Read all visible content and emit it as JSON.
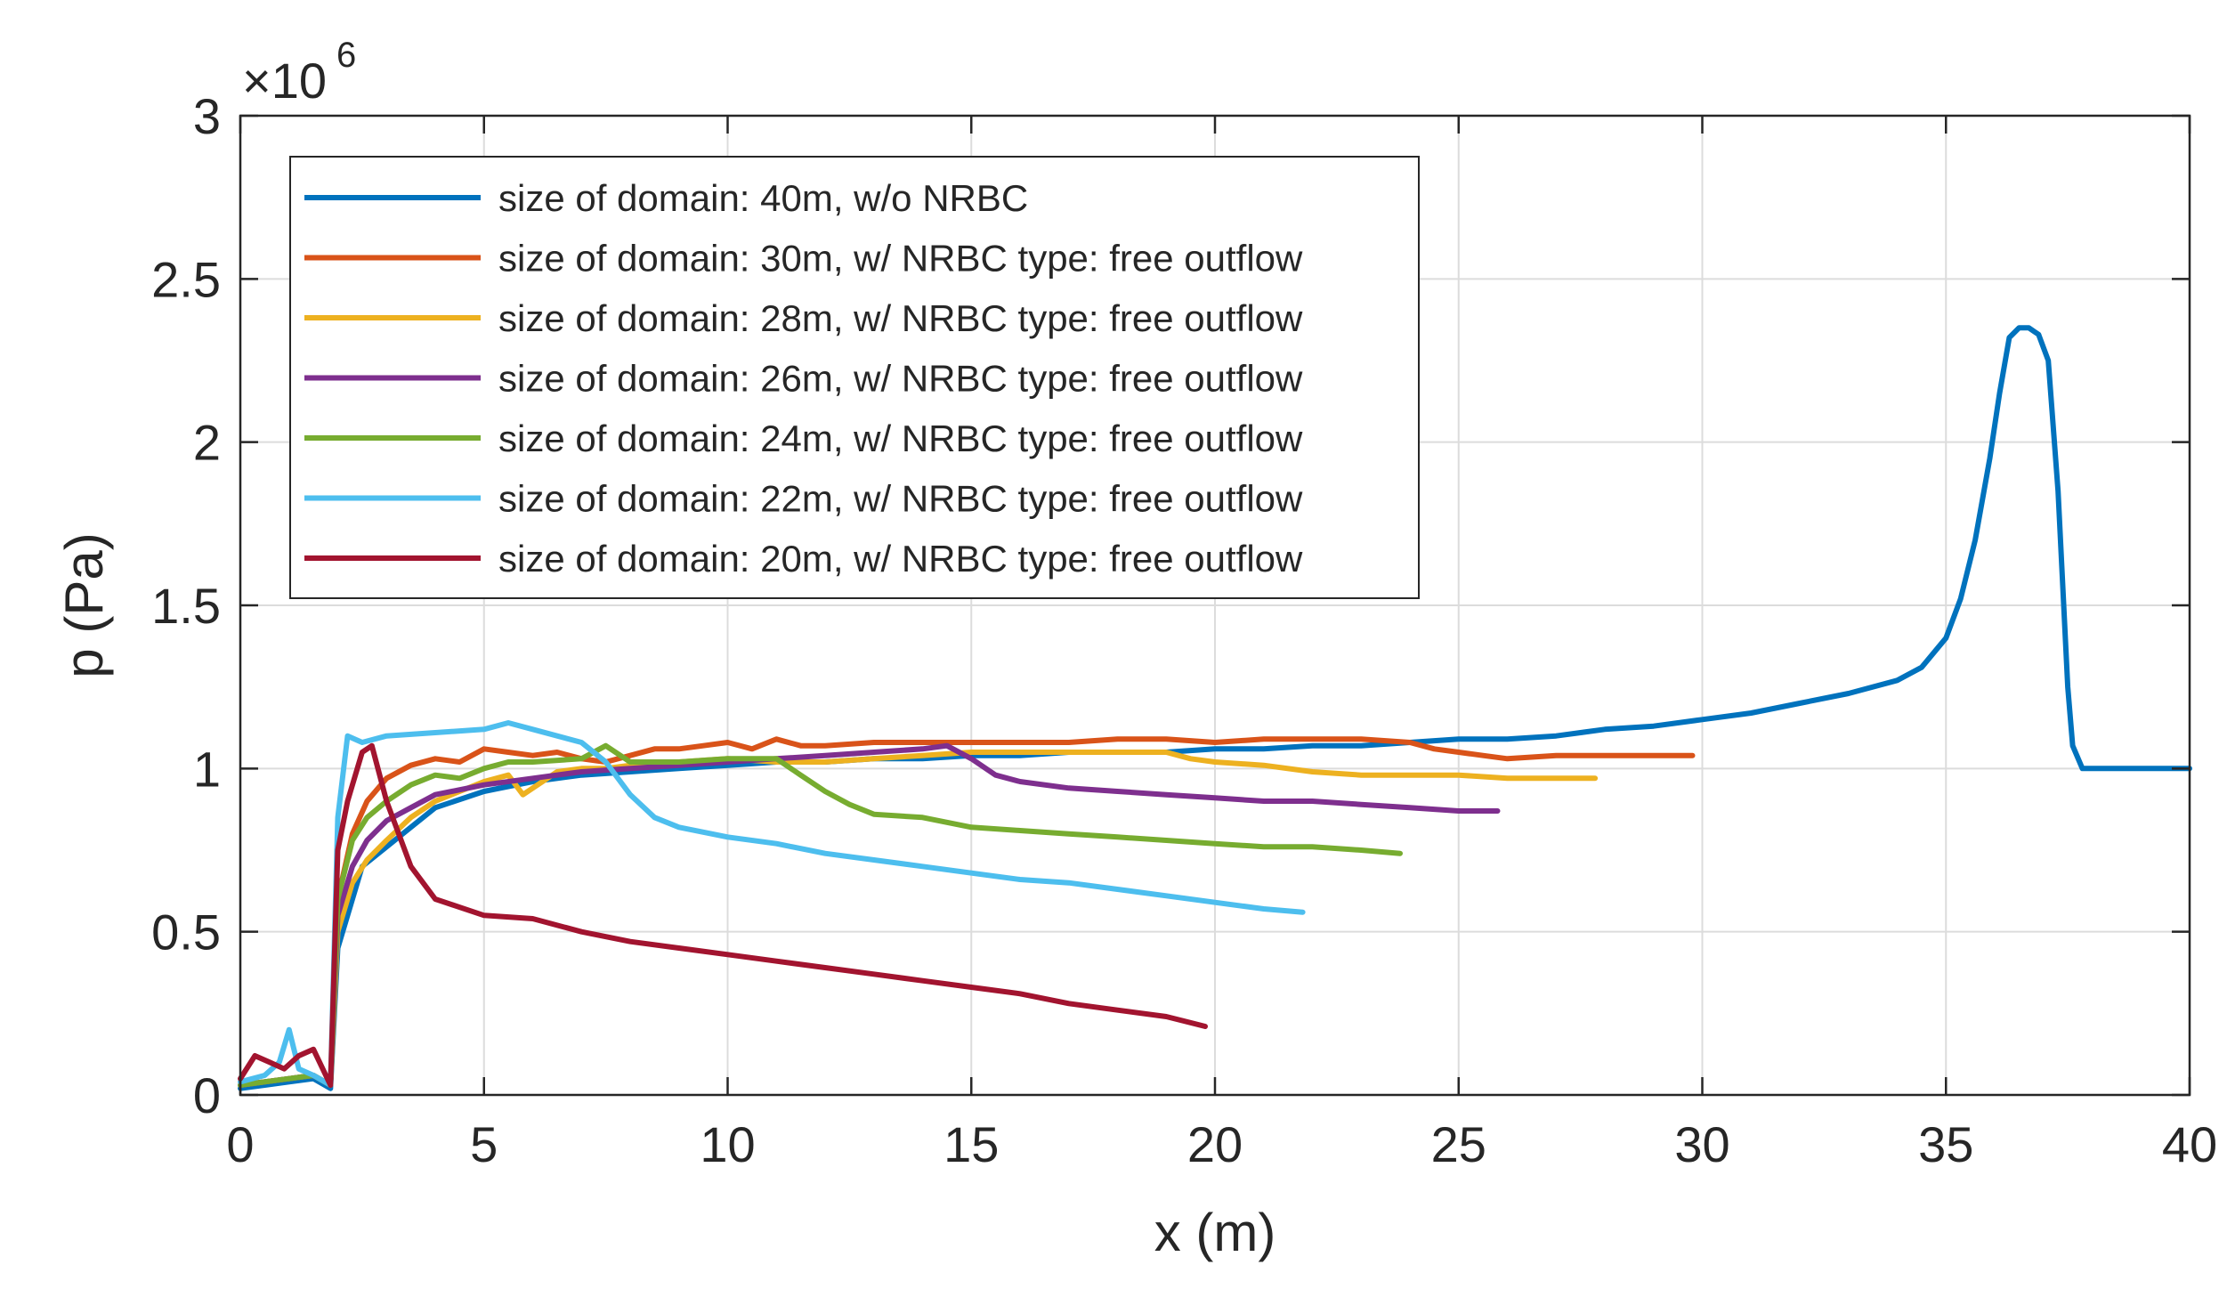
{
  "chart_data": {
    "type": "line",
    "title": "",
    "xlabel": "x (m)",
    "ylabel": "p (Pa)",
    "xlim": [
      0,
      40
    ],
    "ylim": [
      0,
      3
    ],
    "y_scale_base": "×10",
    "y_scale_exponent": "6",
    "xticks": [
      0,
      5,
      10,
      15,
      20,
      25,
      30,
      35,
      40
    ],
    "xtick_labels": [
      "0",
      "5",
      "10",
      "15",
      "20",
      "25",
      "30",
      "35",
      "40"
    ],
    "yticks": [
      0,
      0.5,
      1,
      1.5,
      2,
      2.5,
      3
    ],
    "ytick_labels": [
      "0",
      "0.5",
      "1",
      "1.5",
      "2",
      "2.5",
      "3"
    ],
    "grid": true,
    "legend_position": "top-left",
    "series": [
      {
        "name": "size of domain: 40m, w/o NRBC",
        "color": "#0072BD",
        "x": [
          0,
          0.5,
          1.0,
          1.5,
          1.85,
          2.0,
          2.2,
          2.5,
          3.0,
          3.5,
          4,
          5,
          6,
          7,
          8,
          9,
          10,
          11,
          12,
          13,
          14,
          15,
          16,
          17,
          18,
          19,
          20,
          21,
          22,
          23,
          24,
          25,
          26,
          27,
          28,
          29,
          30,
          31,
          32,
          33,
          34,
          34.5,
          35,
          35.3,
          35.6,
          35.9,
          36.1,
          36.3,
          36.5,
          36.7,
          36.9,
          37.1,
          37.3,
          37.5,
          37.6,
          37.8,
          38,
          39,
          40
        ],
        "y": [
          0.02,
          0.03,
          0.04,
          0.05,
          0.02,
          0.45,
          0.55,
          0.7,
          0.76,
          0.82,
          0.88,
          0.93,
          0.96,
          0.98,
          0.99,
          1.0,
          1.01,
          1.02,
          1.02,
          1.03,
          1.03,
          1.04,
          1.04,
          1.05,
          1.05,
          1.05,
          1.06,
          1.06,
          1.07,
          1.07,
          1.08,
          1.09,
          1.09,
          1.1,
          1.12,
          1.13,
          1.15,
          1.17,
          1.2,
          1.23,
          1.27,
          1.31,
          1.4,
          1.52,
          1.7,
          1.95,
          2.15,
          2.32,
          2.35,
          2.35,
          2.33,
          2.25,
          1.85,
          1.25,
          1.07,
          1.0,
          1.0,
          1.0,
          1.0
        ]
      },
      {
        "name": "size of domain: 30m, w/ NRBC type: free outflow",
        "color": "#D95319",
        "x": [
          0,
          0.5,
          1.0,
          1.5,
          1.85,
          2.0,
          2.3,
          2.6,
          3.0,
          3.5,
          4,
          4.5,
          5,
          5.5,
          6,
          6.5,
          7,
          7.5,
          8,
          8.5,
          9,
          9.5,
          10,
          10.5,
          11,
          11.5,
          12,
          13,
          14,
          15,
          16,
          17,
          18,
          19,
          20,
          21,
          22,
          23,
          24,
          24.5,
          25,
          25.5,
          26,
          27,
          28,
          29,
          29.8
        ],
        "y": [
          0.03,
          0.04,
          0.05,
          0.06,
          0.03,
          0.6,
          0.8,
          0.9,
          0.97,
          1.01,
          1.03,
          1.02,
          1.06,
          1.05,
          1.04,
          1.05,
          1.03,
          1.02,
          1.04,
          1.06,
          1.06,
          1.07,
          1.08,
          1.06,
          1.09,
          1.07,
          1.07,
          1.08,
          1.08,
          1.08,
          1.08,
          1.08,
          1.09,
          1.09,
          1.08,
          1.09,
          1.09,
          1.09,
          1.08,
          1.06,
          1.05,
          1.04,
          1.03,
          1.04,
          1.04,
          1.04,
          1.04
        ]
      },
      {
        "name": "size of domain: 28m, w/ NRBC type: free outflow",
        "color": "#EDB120",
        "x": [
          0,
          0.5,
          1.0,
          1.5,
          1.85,
          2.0,
          2.3,
          2.6,
          3.0,
          3.5,
          4,
          4.5,
          5,
          5.5,
          5.8,
          6.2,
          6.5,
          7,
          7.5,
          8,
          9,
          10,
          11,
          12,
          13,
          14,
          15,
          16,
          17,
          18,
          19,
          19.5,
          20,
          21,
          22,
          23,
          24,
          25,
          26,
          27,
          27.8
        ],
        "y": [
          0.03,
          0.04,
          0.05,
          0.06,
          0.03,
          0.5,
          0.65,
          0.72,
          0.78,
          0.85,
          0.9,
          0.93,
          0.96,
          0.98,
          0.92,
          0.96,
          0.99,
          1.0,
          1.0,
          1.01,
          1.02,
          1.03,
          1.02,
          1.02,
          1.03,
          1.04,
          1.05,
          1.05,
          1.05,
          1.05,
          1.05,
          1.03,
          1.02,
          1.01,
          0.99,
          0.98,
          0.98,
          0.98,
          0.97,
          0.97,
          0.97
        ]
      },
      {
        "name": "size of domain: 26m, w/ NRBC type: free outflow",
        "color": "#7E2F8E",
        "x": [
          0,
          0.5,
          1.0,
          1.5,
          1.85,
          2.0,
          2.3,
          2.6,
          3.0,
          3.5,
          4,
          5,
          6,
          7,
          8,
          9,
          10,
          11,
          12,
          13,
          14,
          14.5,
          15,
          15.5,
          16,
          17,
          18,
          19,
          20,
          21,
          22,
          23,
          24,
          25,
          25.8
        ],
        "y": [
          0.03,
          0.04,
          0.05,
          0.06,
          0.03,
          0.55,
          0.7,
          0.78,
          0.84,
          0.88,
          0.92,
          0.95,
          0.97,
          0.99,
          1.0,
          1.01,
          1.02,
          1.03,
          1.04,
          1.05,
          1.06,
          1.07,
          1.03,
          0.98,
          0.96,
          0.94,
          0.93,
          0.92,
          0.91,
          0.9,
          0.9,
          0.89,
          0.88,
          0.87,
          0.87
        ]
      },
      {
        "name": "size of domain: 24m, w/ NRBC type: free outflow",
        "color": "#77AC30",
        "x": [
          0,
          0.5,
          1.0,
          1.5,
          1.85,
          2.0,
          2.3,
          2.6,
          3.0,
          3.5,
          4,
          4.5,
          5,
          5.5,
          6,
          7,
          7.5,
          8,
          9,
          10,
          11,
          11.5,
          12,
          12.5,
          13,
          14,
          15,
          16,
          17,
          18,
          19,
          20,
          21,
          22,
          23,
          23.8
        ],
        "y": [
          0.03,
          0.04,
          0.05,
          0.06,
          0.03,
          0.6,
          0.78,
          0.85,
          0.9,
          0.95,
          0.98,
          0.97,
          1.0,
          1.02,
          1.02,
          1.03,
          1.07,
          1.02,
          1.02,
          1.03,
          1.03,
          0.98,
          0.93,
          0.89,
          0.86,
          0.85,
          0.82,
          0.81,
          0.8,
          0.79,
          0.78,
          0.77,
          0.76,
          0.76,
          0.75,
          0.74
        ]
      },
      {
        "name": "size of domain: 22m, w/ NRBC type: free outflow",
        "color": "#4DBEEE",
        "x": [
          0,
          0.5,
          0.8,
          1.0,
          1.2,
          1.5,
          1.85,
          2.0,
          2.2,
          2.5,
          3.0,
          4,
          5,
          5.5,
          6,
          7,
          7.5,
          8,
          8.5,
          9,
          10,
          11,
          12,
          13,
          14,
          15,
          16,
          17,
          18,
          19,
          20,
          21,
          21.8
        ],
        "y": [
          0.04,
          0.06,
          0.1,
          0.2,
          0.08,
          0.06,
          0.03,
          0.85,
          1.1,
          1.08,
          1.1,
          1.11,
          1.12,
          1.14,
          1.12,
          1.08,
          1.02,
          0.92,
          0.85,
          0.82,
          0.79,
          0.77,
          0.74,
          0.72,
          0.7,
          0.68,
          0.66,
          0.65,
          0.63,
          0.61,
          0.59,
          0.57,
          0.56
        ]
      },
      {
        "name": "size of domain: 20m, w/ NRBC type: free outflow",
        "color": "#A2142F",
        "x": [
          0,
          0.3,
          0.6,
          0.9,
          1.2,
          1.5,
          1.85,
          2.0,
          2.2,
          2.5,
          2.7,
          3.0,
          3.5,
          4,
          5,
          6,
          7,
          8,
          9,
          10,
          11,
          12,
          13,
          14,
          15,
          16,
          17,
          18,
          19,
          19.8
        ],
        "y": [
          0.05,
          0.12,
          0.1,
          0.08,
          0.12,
          0.14,
          0.03,
          0.75,
          0.9,
          1.05,
          1.07,
          0.9,
          0.7,
          0.6,
          0.55,
          0.54,
          0.5,
          0.47,
          0.45,
          0.43,
          0.41,
          0.39,
          0.37,
          0.35,
          0.33,
          0.31,
          0.28,
          0.26,
          0.24,
          0.21
        ]
      }
    ]
  }
}
